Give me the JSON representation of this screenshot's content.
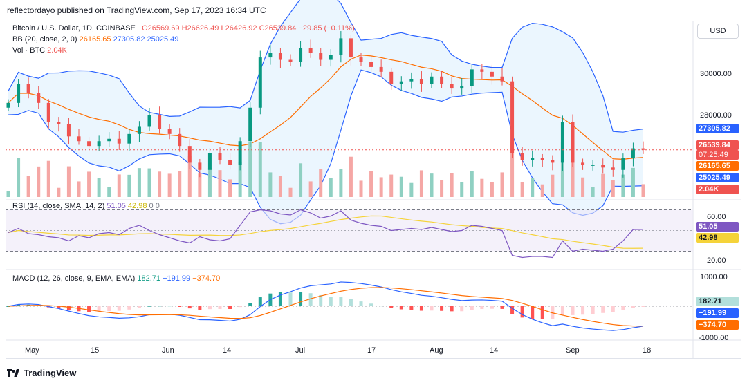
{
  "publish_text": "reflectordayo published on TradingView.com, Sep 17, 2023 16:34 UTC",
  "currency_button": "USD",
  "footer_brand": "TradingView",
  "legend": {
    "symbol": "Bitcoin / U.S. Dollar, 1D, COINBASE",
    "o_label": "O",
    "o": "26569.69",
    "h_label": "H",
    "h": "26626.49",
    "l_label": "L",
    "l": "26426.92",
    "c_label": "C",
    "c": "26539.84",
    "change": "−29.85 (−0.11%)",
    "bb_label": "BB (20, close, 2, 0)",
    "bb_basis": "26165.65",
    "bb_upper": "27305.82",
    "bb_lower": "25025.49",
    "vol_label": "Vol · BTC",
    "vol": "2.04K",
    "rsi_label": "RSI (14, close, SMA, 14, 2)",
    "rsi": "51.05",
    "rsi_ma": "42.98",
    "rsi_zero1": "0",
    "rsi_zero2": "0",
    "macd_label": "MACD (12, 26, close, 9, EMA, EMA)",
    "macd_hist": "182.71",
    "macd": "−191.99",
    "macd_signal": "−374.70"
  },
  "price_badges": {
    "bb_upper": "27305.82",
    "close": "26539.84",
    "countdown": "07:25:49",
    "bb_basis": "26165.65",
    "bb_lower": "25025.49",
    "vol": "2.04K",
    "rsi": "51.05",
    "rsi_ma": "42.98",
    "macd_hist": "182.71",
    "macd": "−191.99",
    "macd_signal": "−374.70"
  },
  "colors": {
    "up": "#089981",
    "down": "#ef5350",
    "bb_band": "#2962ff",
    "bb_basis": "#ff6d00",
    "bb_fill": "#e3f2fd",
    "vol_up": "#8fd0c2",
    "vol_down": "#f5a7a5",
    "rsi_line": "#7e57c2",
    "rsi_ma": "#f5d33a",
    "rsi_fill": "#ede7f6",
    "macd_line": "#2962ff",
    "signal_line": "#ff6d00"
  },
  "chart_data": [
    {
      "type": "candlestick",
      "title": "Bitcoin / U.S. Dollar, 1D, COINBASE",
      "x_ticks": [
        "May",
        "15",
        "Jun",
        "14",
        "Jul",
        "17",
        "Aug",
        "14",
        "Sep",
        "18"
      ],
      "y_ticks": [
        "30000.00",
        "28000.00"
      ],
      "ylim": [
        25000,
        31500
      ],
      "ohlc_sample_start": "May",
      "close_values": [
        28500,
        29300,
        28900,
        28500,
        27700,
        27600,
        27100,
        26900,
        26700,
        26900,
        27000,
        26800,
        27200,
        27500,
        28000,
        27400,
        27200,
        26700,
        26000,
        25700,
        26400,
        26100,
        25900,
        26900,
        28300,
        30400,
        30600,
        30300,
        30200,
        30800,
        30600,
        30300,
        30500,
        31200,
        30400,
        30200,
        30000,
        29800,
        29300,
        29400,
        29500,
        29300,
        29600,
        29300,
        29100,
        29200,
        29900,
        29800,
        29600,
        29400,
        26400,
        26100,
        26200,
        26100,
        26000,
        27700,
        26000,
        25900,
        25900,
        25800,
        25700,
        26200,
        26600,
        26540
      ],
      "bb_upper_last": 27305.82,
      "bb_basis_last": 26165.65,
      "bb_lower_last": 25025.49
    },
    {
      "type": "bar",
      "title": "Vol · BTC",
      "last_value": "2.04K"
    },
    {
      "type": "line",
      "title": "RSI (14, close, SMA, 14, 2)",
      "y_ticks": [
        "60.00",
        "20.00"
      ],
      "ylim": [
        15,
        75
      ],
      "rsi_values": [
        48,
        52,
        47,
        46,
        44,
        43,
        40,
        45,
        43,
        47,
        48,
        46,
        52,
        55,
        50,
        46,
        43,
        40,
        38,
        44,
        41,
        40,
        42,
        55,
        68,
        70,
        69,
        66,
        65,
        70,
        67,
        62,
        64,
        69,
        60,
        57,
        55,
        54,
        50,
        51,
        52,
        51,
        53,
        51,
        49,
        50,
        55,
        54,
        52,
        50,
        26,
        24,
        25,
        25,
        24,
        40,
        30,
        32,
        31,
        30,
        32,
        40,
        51,
        51.05
      ],
      "rsi_ma_last": 42.98
    },
    {
      "type": "line",
      "title": "MACD (12, 26, close, 9, EMA, EMA)",
      "y_ticks": [
        "1000.00",
        "-1000.00"
      ],
      "ylim": [
        -1150,
        1150
      ],
      "macd_last": -191.99,
      "signal_last": -374.7,
      "hist_last": 182.71
    }
  ]
}
